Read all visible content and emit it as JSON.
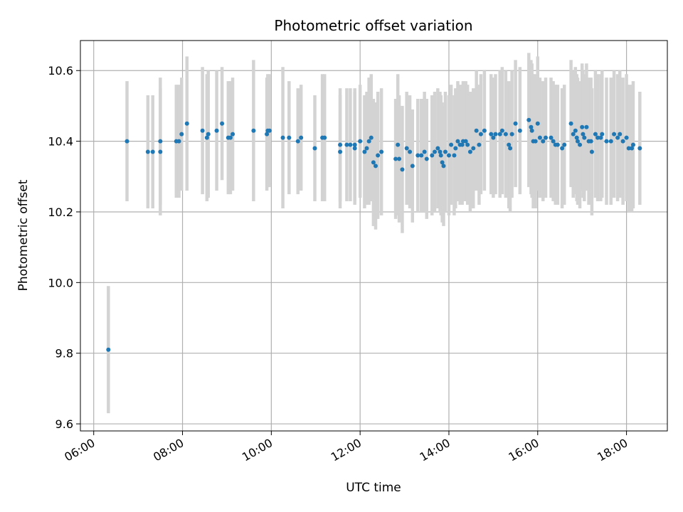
{
  "chart_data": {
    "type": "scatter",
    "title": "Photometric offset variation",
    "xlabel": "UTC time",
    "ylabel": "Photometric offset",
    "x_unit": "hours UTC",
    "xlim": [
      5.7,
      18.92
    ],
    "ylim": [
      9.58,
      10.685
    ],
    "x_ticks": [
      {
        "value": 6,
        "label": "06:00"
      },
      {
        "value": 8,
        "label": "08:00"
      },
      {
        "value": 10,
        "label": "10:00"
      },
      {
        "value": 12,
        "label": "12:00"
      },
      {
        "value": 14,
        "label": "14:00"
      },
      {
        "value": 16,
        "label": "16:00"
      },
      {
        "value": 18,
        "label": "18:00"
      }
    ],
    "y_ticks": [
      {
        "value": 9.6,
        "label": "9.6"
      },
      {
        "value": 9.8,
        "label": "9.8"
      },
      {
        "value": 10.0,
        "label": "10.0"
      },
      {
        "value": 10.2,
        "label": "10.2"
      },
      {
        "value": 10.4,
        "label": "10.4"
      },
      {
        "value": 10.6,
        "label": "10.6"
      }
    ],
    "grid": true,
    "colors": {
      "point": "#1f77b4",
      "errorbar": "#d3d3d3",
      "grid": "#b0b0b0"
    },
    "points": [
      [
        6.33,
        9.81,
        0.18
      ],
      [
        6.75,
        10.4,
        0.17
      ],
      [
        7.22,
        10.37,
        0.16
      ],
      [
        7.33,
        10.37,
        0.16
      ],
      [
        7.5,
        10.4,
        0.18
      ],
      [
        7.5,
        10.37,
        0.18
      ],
      [
        7.86,
        10.4,
        0.16
      ],
      [
        7.92,
        10.4,
        0.16
      ],
      [
        7.98,
        10.42,
        0.16
      ],
      [
        8.1,
        10.45,
        0.19
      ],
      [
        8.45,
        10.43,
        0.18
      ],
      [
        8.55,
        10.41,
        0.18
      ],
      [
        8.58,
        10.42,
        0.18
      ],
      [
        8.77,
        10.43,
        0.17
      ],
      [
        8.89,
        10.45,
        0.16
      ],
      [
        9.03,
        10.41,
        0.16
      ],
      [
        9.08,
        10.41,
        0.16
      ],
      [
        9.13,
        10.42,
        0.16
      ],
      [
        9.6,
        10.43,
        0.2
      ],
      [
        9.9,
        10.42,
        0.16
      ],
      [
        9.92,
        10.43,
        0.16
      ],
      [
        9.96,
        10.43,
        0.16
      ],
      [
        10.26,
        10.41,
        0.2
      ],
      [
        10.4,
        10.41,
        0.16
      ],
      [
        10.6,
        10.4,
        0.15
      ],
      [
        10.67,
        10.41,
        0.15
      ],
      [
        10.98,
        10.38,
        0.15
      ],
      [
        11.15,
        10.41,
        0.18
      ],
      [
        11.2,
        10.41,
        0.18
      ],
      [
        11.55,
        10.37,
        0.16
      ],
      [
        11.55,
        10.39,
        0.16
      ],
      [
        11.7,
        10.39,
        0.16
      ],
      [
        11.78,
        10.39,
        0.16
      ],
      [
        11.88,
        10.39,
        0.16
      ],
      [
        11.88,
        10.38,
        0.16
      ],
      [
        12.0,
        10.4,
        0.16
      ],
      [
        12.1,
        10.37,
        0.16
      ],
      [
        12.15,
        10.38,
        0.16
      ],
      [
        12.2,
        10.4,
        0.18
      ],
      [
        12.25,
        10.41,
        0.18
      ],
      [
        12.3,
        10.34,
        0.18
      ],
      [
        12.35,
        10.33,
        0.18
      ],
      [
        12.4,
        10.36,
        0.18
      ],
      [
        12.48,
        10.37,
        0.18
      ],
      [
        12.8,
        10.35,
        0.17
      ],
      [
        12.85,
        10.39,
        0.2
      ],
      [
        12.88,
        10.35,
        0.18
      ],
      [
        12.95,
        10.32,
        0.18
      ],
      [
        13.05,
        10.38,
        0.16
      ],
      [
        13.12,
        10.37,
        0.16
      ],
      [
        13.18,
        10.33,
        0.16
      ],
      [
        13.3,
        10.36,
        0.16
      ],
      [
        13.38,
        10.36,
        0.16
      ],
      [
        13.45,
        10.37,
        0.17
      ],
      [
        13.5,
        10.35,
        0.17
      ],
      [
        13.62,
        10.36,
        0.17
      ],
      [
        13.68,
        10.37,
        0.17
      ],
      [
        13.75,
        10.38,
        0.17
      ],
      [
        13.8,
        10.37,
        0.17
      ],
      [
        13.82,
        10.36,
        0.17
      ],
      [
        13.85,
        10.34,
        0.17
      ],
      [
        13.88,
        10.33,
        0.17
      ],
      [
        13.92,
        10.37,
        0.17
      ],
      [
        14.0,
        10.36,
        0.17
      ],
      [
        14.05,
        10.39,
        0.17
      ],
      [
        14.12,
        10.36,
        0.17
      ],
      [
        14.15,
        10.38,
        0.17
      ],
      [
        14.2,
        10.4,
        0.17
      ],
      [
        14.25,
        10.39,
        0.17
      ],
      [
        14.3,
        10.39,
        0.17
      ],
      [
        14.32,
        10.4,
        0.17
      ],
      [
        14.38,
        10.4,
        0.17
      ],
      [
        14.42,
        10.39,
        0.17
      ],
      [
        14.48,
        10.37,
        0.17
      ],
      [
        14.55,
        10.38,
        0.17
      ],
      [
        14.62,
        10.43,
        0.17
      ],
      [
        14.68,
        10.39,
        0.17
      ],
      [
        14.72,
        10.42,
        0.17
      ],
      [
        14.8,
        10.43,
        0.17
      ],
      [
        14.95,
        10.42,
        0.17
      ],
      [
        15.0,
        10.41,
        0.17
      ],
      [
        15.05,
        10.42,
        0.17
      ],
      [
        15.15,
        10.42,
        0.18
      ],
      [
        15.2,
        10.43,
        0.18
      ],
      [
        15.28,
        10.42,
        0.18
      ],
      [
        15.35,
        10.39,
        0.18
      ],
      [
        15.38,
        10.38,
        0.18
      ],
      [
        15.42,
        10.42,
        0.18
      ],
      [
        15.5,
        10.45,
        0.18
      ],
      [
        15.6,
        10.43,
        0.18
      ],
      [
        15.8,
        10.46,
        0.19
      ],
      [
        15.85,
        10.44,
        0.19
      ],
      [
        15.87,
        10.43,
        0.19
      ],
      [
        15.9,
        10.4,
        0.19
      ],
      [
        15.95,
        10.4,
        0.19
      ],
      [
        16.0,
        10.45,
        0.19
      ],
      [
        16.05,
        10.41,
        0.17
      ],
      [
        16.12,
        10.4,
        0.17
      ],
      [
        16.18,
        10.41,
        0.17
      ],
      [
        16.3,
        10.41,
        0.17
      ],
      [
        16.35,
        10.4,
        0.17
      ],
      [
        16.4,
        10.39,
        0.17
      ],
      [
        16.45,
        10.39,
        0.17
      ],
      [
        16.55,
        10.38,
        0.17
      ],
      [
        16.6,
        10.39,
        0.17
      ],
      [
        16.75,
        10.45,
        0.18
      ],
      [
        16.8,
        10.42,
        0.18
      ],
      [
        16.85,
        10.43,
        0.18
      ],
      [
        16.88,
        10.41,
        0.18
      ],
      [
        16.9,
        10.4,
        0.18
      ],
      [
        16.95,
        10.39,
        0.18
      ],
      [
        17.0,
        10.44,
        0.18
      ],
      [
        17.02,
        10.42,
        0.18
      ],
      [
        17.05,
        10.41,
        0.18
      ],
      [
        17.1,
        10.44,
        0.18
      ],
      [
        17.15,
        10.4,
        0.18
      ],
      [
        17.2,
        10.4,
        0.18
      ],
      [
        17.22,
        10.37,
        0.18
      ],
      [
        17.3,
        10.42,
        0.18
      ],
      [
        17.35,
        10.41,
        0.18
      ],
      [
        17.42,
        10.41,
        0.18
      ],
      [
        17.45,
        10.42,
        0.18
      ],
      [
        17.55,
        10.4,
        0.18
      ],
      [
        17.65,
        10.4,
        0.18
      ],
      [
        17.72,
        10.42,
        0.18
      ],
      [
        17.8,
        10.41,
        0.18
      ],
      [
        17.85,
        10.42,
        0.18
      ],
      [
        17.92,
        10.4,
        0.18
      ],
      [
        18.0,
        10.41,
        0.18
      ],
      [
        18.05,
        10.38,
        0.18
      ],
      [
        18.12,
        10.38,
        0.18
      ],
      [
        18.15,
        10.39,
        0.18
      ],
      [
        18.3,
        10.38,
        0.16
      ]
    ]
  }
}
